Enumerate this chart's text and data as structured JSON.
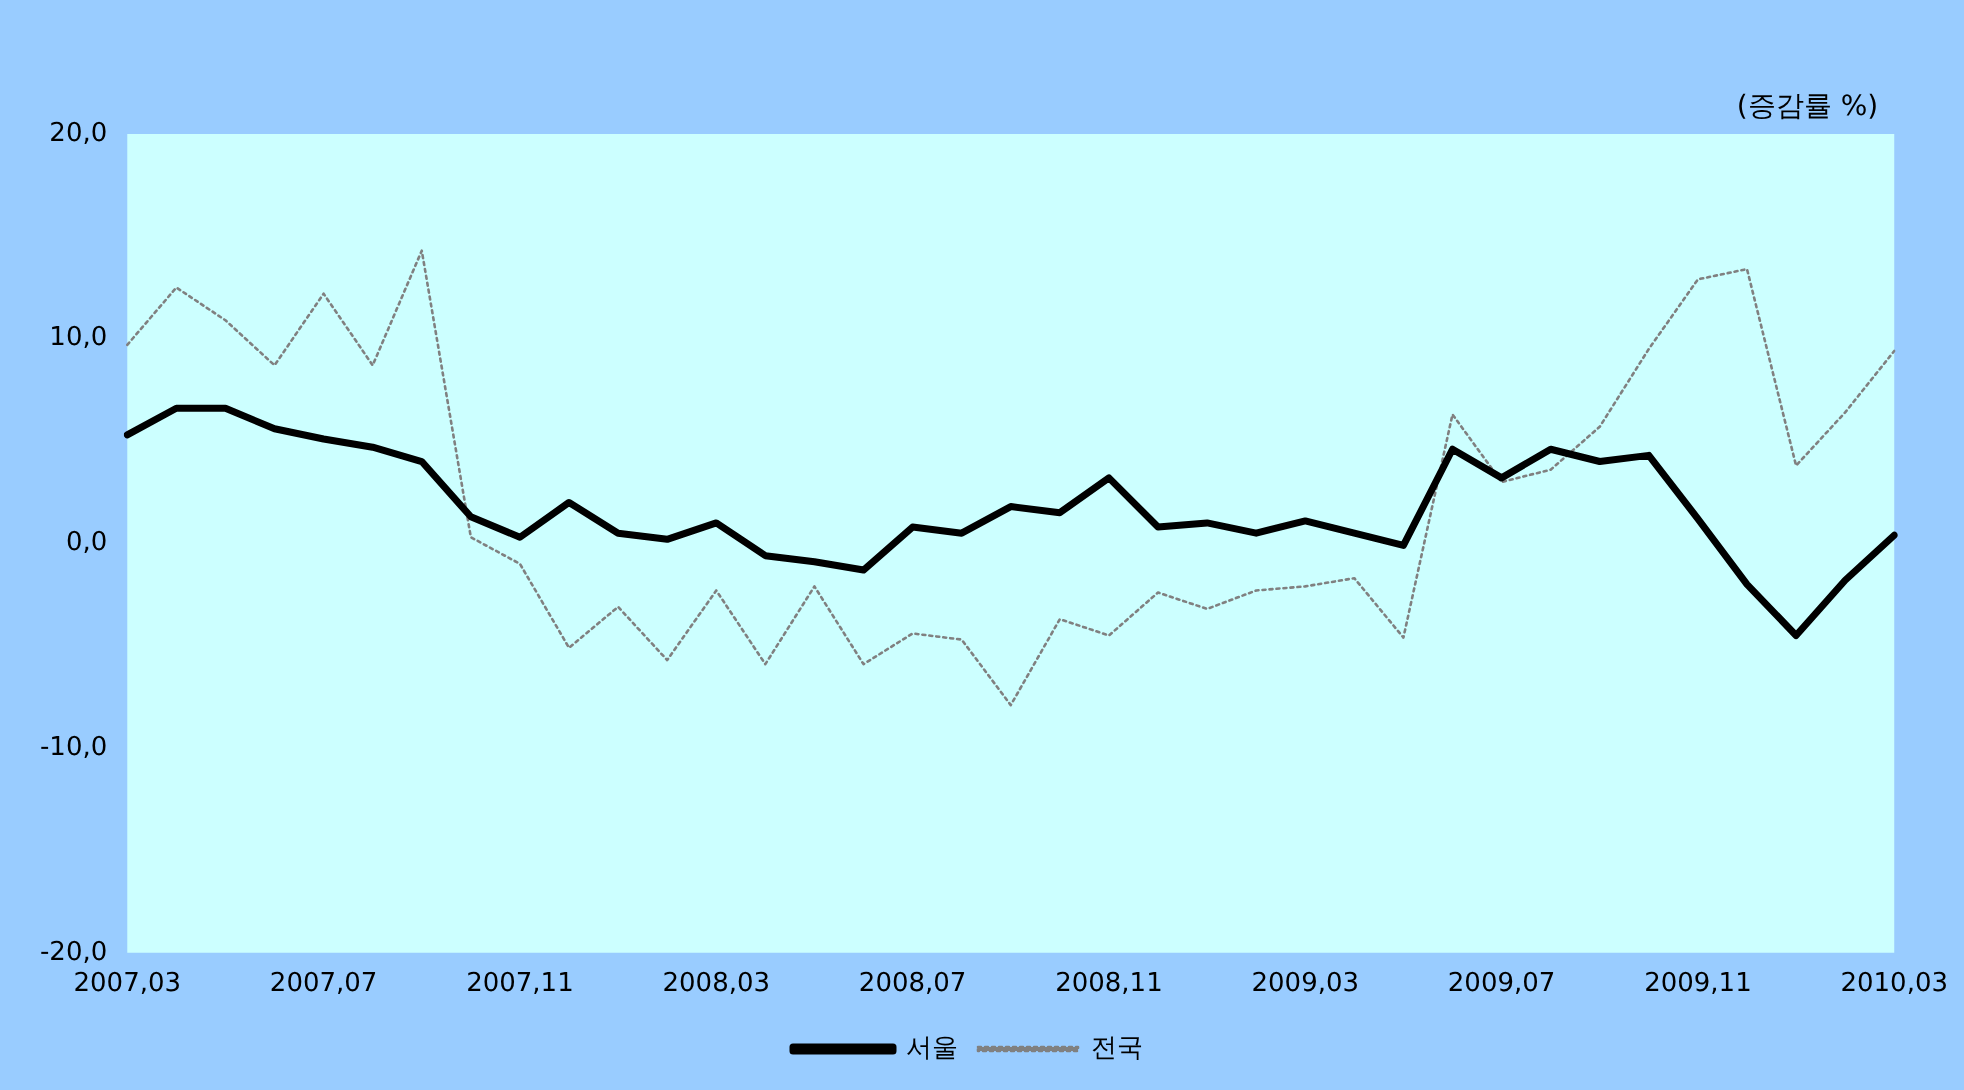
{
  "chart_data": {
    "type": "line",
    "categories": [
      "2007,03",
      null,
      null,
      null,
      "2007,07",
      null,
      null,
      null,
      "2007,11",
      null,
      null,
      null,
      "2008,03",
      null,
      null,
      null,
      "2008,07",
      null,
      null,
      null,
      "2008,11",
      null,
      null,
      null,
      "2009,03",
      null,
      null,
      null,
      "2009,07",
      null,
      null,
      null,
      "2009,11",
      null,
      null,
      null,
      "2010,03"
    ],
    "series": [
      {
        "name": "서울",
        "color": "#000000",
        "line_style": "solid",
        "values": [
          5.3,
          6.6,
          6.6,
          5.6,
          5.1,
          4.7,
          4.0,
          1.3,
          0.3,
          2.0,
          0.5,
          0.2,
          1.0,
          -0.6,
          -0.9,
          -1.3,
          0.8,
          0.5,
          1.8,
          1.5,
          3.2,
          0.8,
          1.0,
          0.5,
          1.1,
          0.5,
          -0.1,
          4.6,
          3.2,
          4.6,
          4.0,
          4.3,
          1.2,
          -2.0,
          -4.5,
          -1.8,
          0.4
        ]
      },
      {
        "name": "전국",
        "color": "#808080",
        "line_style": "dotted",
        "values": [
          9.7,
          12.5,
          10.9,
          8.7,
          12.2,
          8.7,
          14.3,
          0.3,
          -1.0,
          -5.1,
          -3.1,
          -5.7,
          -2.3,
          -5.9,
          -2.1,
          -5.9,
          -4.4,
          -4.7,
          -7.9,
          -3.7,
          -4.5,
          -2.4,
          -3.2,
          -2.3,
          -2.1,
          -1.7,
          -4.6,
          6.3,
          3.0,
          3.6,
          5.7,
          9.5,
          12.9,
          13.4,
          3.8,
          6.4,
          9.4
        ]
      }
    ],
    "ylim": [
      -20,
      20
    ],
    "yticks": [
      {
        "value": -20,
        "label": "-20,0"
      },
      {
        "value": -10,
        "label": "-10,0"
      },
      {
        "value": 0,
        "label": "0,0"
      },
      {
        "value": 10,
        "label": "10,0"
      },
      {
        "value": 20,
        "label": "20,0"
      }
    ],
    "annotations": [
      "(증감률 %)"
    ],
    "legend": "bottom",
    "marker": "none",
    "grid": false
  }
}
